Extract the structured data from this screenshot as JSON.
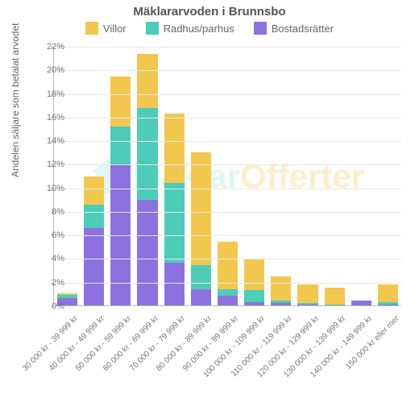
{
  "chart": {
    "type": "bar-stacked",
    "title": "Mäklararvoden i Brunnsbo",
    "title_fontsize": 15,
    "y_axis_label": "Andelen säljare som betalat arvodet",
    "label_fontsize": 12,
    "watermark_text_a": "Mäklar",
    "watermark_text_b": "Offerter",
    "background_color": "#ffffff",
    "grid_color": "#e8e8e8",
    "axis_color": "#bbbbbb",
    "tick_font_color": "#777777",
    "ylim": [
      0,
      22
    ],
    "ytick_step": 2,
    "y_tick_suffix": "%",
    "legend": [
      {
        "label": "Villor",
        "color": "#f2c74e"
      },
      {
        "label": "Radhus/parhus",
        "color": "#4cccb9"
      },
      {
        "label": "Bostadsrätter",
        "color": "#8b72e0"
      }
    ],
    "categories": [
      "30 000 kr - 39 999 kr",
      "40 000 kr - 49 999 kr",
      "50 000 kr - 59 999 kr",
      "60 000 kr - 69 999 kr",
      "70 000 kr - 79 999 kr",
      "80 000 kr - 89 999 kr",
      "90 000 kr - 99 999 kr",
      "100 000 kr - 109 999 kr",
      "110 000 kr - 119 999 kr",
      "120 000 kr - 129 999 kr",
      "130 000 kr - 139 999 kr",
      "140 000 kr - 149 999 kr",
      "150 000 kr eller mer"
    ],
    "series": {
      "bostadsratter": [
        0.6,
        6.6,
        12.0,
        9.0,
        3.6,
        1.4,
        0.8,
        0.3,
        0.2,
        0.1,
        0.0,
        0.4,
        0.1
      ],
      "radhus": [
        0.3,
        2.0,
        3.2,
        7.8,
        6.8,
        2.0,
        0.6,
        1.0,
        0.2,
        0.1,
        0.1,
        0.0,
        0.2
      ],
      "villor": [
        0.1,
        2.4,
        4.3,
        4.6,
        5.9,
        9.6,
        4.0,
        2.6,
        2.1,
        1.6,
        1.4,
        0.0,
        1.5
      ]
    },
    "colors": {
      "bostadsratter": "#8b72e0",
      "radhus": "#4cccb9",
      "villor": "#f2c74e"
    }
  }
}
